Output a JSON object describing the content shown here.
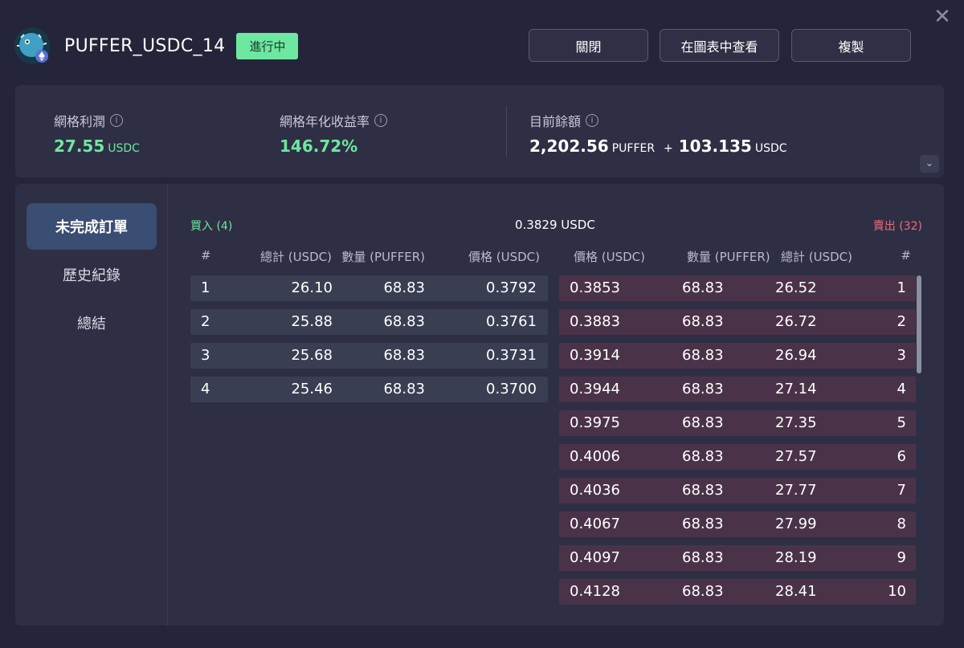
{
  "header": {
    "title": "PUFFER_USDC_14",
    "status": "進行中",
    "buttons": {
      "close": "關閉",
      "view_chart": "在圖表中查看",
      "copy": "複製"
    },
    "close_icon": "✕"
  },
  "stats": {
    "grid_profit": {
      "label": "網格利潤",
      "value": "27.55",
      "unit": "USDC"
    },
    "grid_apr": {
      "label": "網格年化收益率",
      "value": "146.72%"
    },
    "balance": {
      "label": "目前餘額",
      "amount1": "2,202.56",
      "unit1": "PUFFER",
      "plus": "+",
      "amount2": "103.135",
      "unit2": "USDC"
    },
    "info_glyph": "i",
    "expand_glyph": "⌄"
  },
  "sidebar": {
    "items": [
      "未完成訂單",
      "歷史紀錄",
      "總結"
    ]
  },
  "orderbook": {
    "buy_title": "買入 (4)",
    "mid_price": "0.3829",
    "mid_unit": "USDC",
    "sell_title": "賣出 (32)",
    "buy_headers": {
      "idx": "#",
      "total": "總計 (USDC)",
      "qty": "數量 (PUFFER)",
      "price": "價格 (USDC)"
    },
    "sell_headers": {
      "price": "價格 (USDC)",
      "qty": "數量 (PUFFER)",
      "total": "總計 (USDC)",
      "idx": "#"
    },
    "buy_rows": [
      {
        "idx": "1",
        "total": "26.10",
        "qty": "68.83",
        "price": "0.3792"
      },
      {
        "idx": "2",
        "total": "25.88",
        "qty": "68.83",
        "price": "0.3761"
      },
      {
        "idx": "3",
        "total": "25.68",
        "qty": "68.83",
        "price": "0.3731"
      },
      {
        "idx": "4",
        "total": "25.46",
        "qty": "68.83",
        "price": "0.3700"
      }
    ],
    "sell_rows": [
      {
        "price": "0.3853",
        "qty": "68.83",
        "total": "26.52",
        "idx": "1"
      },
      {
        "price": "0.3883",
        "qty": "68.83",
        "total": "26.72",
        "idx": "2"
      },
      {
        "price": "0.3914",
        "qty": "68.83",
        "total": "26.94",
        "idx": "3"
      },
      {
        "price": "0.3944",
        "qty": "68.83",
        "total": "27.14",
        "idx": "4"
      },
      {
        "price": "0.3975",
        "qty": "68.83",
        "total": "27.35",
        "idx": "5"
      },
      {
        "price": "0.4006",
        "qty": "68.83",
        "total": "27.57",
        "idx": "6"
      },
      {
        "price": "0.4036",
        "qty": "68.83",
        "total": "27.77",
        "idx": "7"
      },
      {
        "price": "0.4067",
        "qty": "68.83",
        "total": "27.99",
        "idx": "8"
      },
      {
        "price": "0.4097",
        "qty": "68.83",
        "total": "28.19",
        "idx": "9"
      },
      {
        "price": "0.4128",
        "qty": "68.83",
        "total": "28.41",
        "idx": "10"
      }
    ]
  },
  "colors": {
    "accent_green": "#6ee7a0",
    "accent_red": "#f0697b",
    "active_tab": "#3a4d72"
  }
}
